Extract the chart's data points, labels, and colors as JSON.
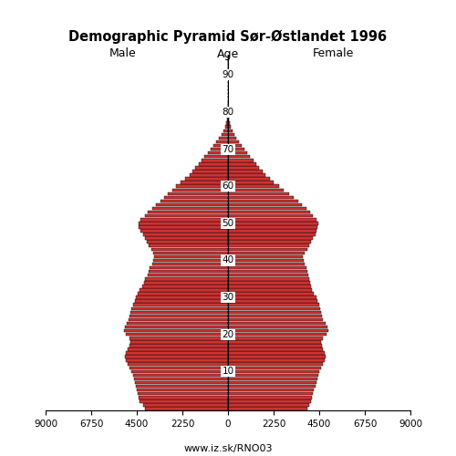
{
  "title": "Demographic Pyramid Sør-Østlandet 1996",
  "subtitle_left": "Male",
  "subtitle_center": "Age",
  "subtitle_right": "Female",
  "footer": "www.iz.sk/RNO03",
  "xlim": 9000,
  "age_ticks": [
    10,
    20,
    30,
    40,
    50,
    60,
    70,
    80,
    90
  ],
  "xticks": [
    0,
    2250,
    4500,
    6750,
    9000
  ],
  "bar_color": "#cc3333",
  "bar_edge_color": "#000000",
  "background_color": "#ffffff",
  "male": [
    4100,
    4200,
    4350,
    4400,
    4450,
    4500,
    4550,
    4600,
    4650,
    4700,
    4750,
    4850,
    4950,
    5050,
    5100,
    5050,
    4950,
    4850,
    4800,
    4850,
    5050,
    5150,
    5100,
    5000,
    4900,
    4850,
    4800,
    4750,
    4700,
    4600,
    4550,
    4450,
    4350,
    4250,
    4150,
    4100,
    3950,
    3900,
    3850,
    3750,
    3700,
    3650,
    3700,
    3800,
    3900,
    4000,
    4100,
    4200,
    4300,
    4400,
    4400,
    4300,
    4100,
    3950,
    3750,
    3550,
    3350,
    3150,
    2950,
    2750,
    2550,
    2350,
    2100,
    1900,
    1750,
    1600,
    1450,
    1300,
    1150,
    1000,
    870,
    730,
    580,
    430,
    310,
    210,
    145,
    90,
    55,
    30,
    17,
    10,
    5,
    3,
    1,
    1,
    0,
    0,
    0,
    0,
    0,
    0,
    0,
    0,
    0,
    0
  ],
  "female": [
    3900,
    4000,
    4100,
    4150,
    4200,
    4250,
    4300,
    4350,
    4400,
    4450,
    4500,
    4600,
    4700,
    4750,
    4800,
    4750,
    4700,
    4650,
    4600,
    4700,
    4850,
    4950,
    4900,
    4800,
    4700,
    4650,
    4600,
    4550,
    4500,
    4400,
    4350,
    4250,
    4150,
    4100,
    4050,
    4000,
    3950,
    3900,
    3850,
    3800,
    3750,
    3700,
    3800,
    3900,
    4000,
    4100,
    4200,
    4300,
    4350,
    4400,
    4450,
    4350,
    4200,
    4050,
    3850,
    3650,
    3450,
    3250,
    3000,
    2750,
    2500,
    2250,
    2050,
    1850,
    1700,
    1550,
    1400,
    1250,
    1100,
    950,
    820,
    680,
    530,
    400,
    295,
    205,
    145,
    100,
    65,
    38,
    22,
    13,
    7,
    3,
    2,
    1,
    0,
    0,
    0,
    0,
    0,
    0,
    0,
    0,
    0,
    0
  ]
}
